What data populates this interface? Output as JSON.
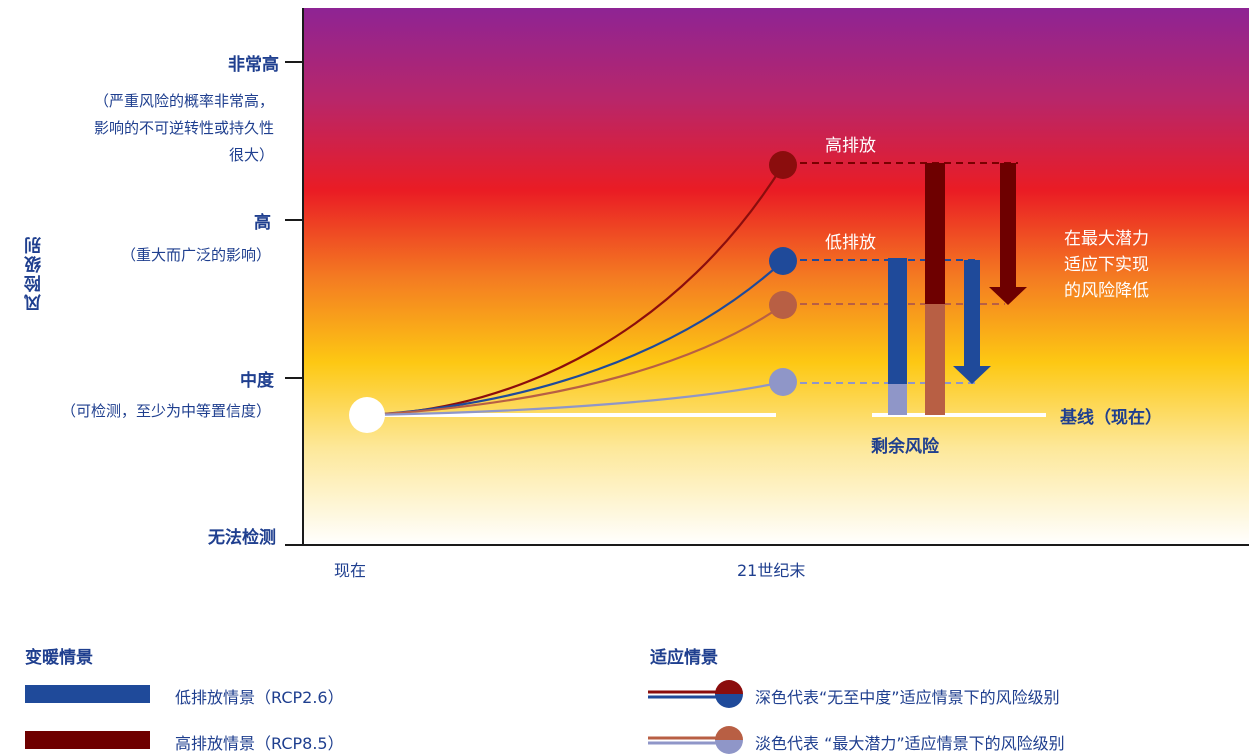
{
  "y_axis": {
    "title": "风险级别",
    "levels": {
      "very_high": "非常高",
      "very_high_desc": [
        "（严重风险的概率非常高，",
        "影响的不可逆转性或持久性",
        "很大）"
      ],
      "high": "高",
      "high_desc": "（重大而广泛的影响）",
      "medium": "中度",
      "medium_desc": "（可检测，至少为中等置信度）",
      "undetectable": "无法检测"
    }
  },
  "x_axis": {
    "start": "现在",
    "end": "21世纪末"
  },
  "chart_labels": {
    "high_emission": "高排放",
    "low_emission": "低排放",
    "reduction_note": [
      "在最大潜力",
      "适应下实现",
      "的风险降低"
    ],
    "baseline": "基线（现在）",
    "residual_risk": "剩余风险"
  },
  "chart_data": {
    "type": "line",
    "x": [
      "现在",
      "21世纪末"
    ],
    "y_levels": [
      "无法检测",
      "中度",
      "高",
      "非常高"
    ],
    "series": [
      {
        "color": "#8b0d0d",
        "start": "baseline",
        "end_level": 2.35
      },
      {
        "color": "#1f4a9a",
        "start": "baseline",
        "end_level": 1.75
      },
      {
        "color": "#b85f44",
        "start": "baseline",
        "end_level": 1.46
      },
      {
        "color": "#8f96c8",
        "start": "baseline",
        "end_level": 1.0
      }
    ]
  },
  "legend": {
    "warming_title": "变暖情景",
    "low_label": "低排放情景（RCP2.6）",
    "high_label": "高排放情景（RCP8.5）",
    "adapt_title": "适应情景",
    "dark_label": "深色代表“无至中度”适应情景下的风险级别",
    "light_label": "淡色代表 “最大潜力”适应情景下的风险级别"
  },
  "colors": {
    "dark_red": "#6e0000",
    "blue": "#1f4a9a",
    "light_red": "#b85f44",
    "light_blue": "#8f96c8",
    "text": "#1f3f8f"
  }
}
